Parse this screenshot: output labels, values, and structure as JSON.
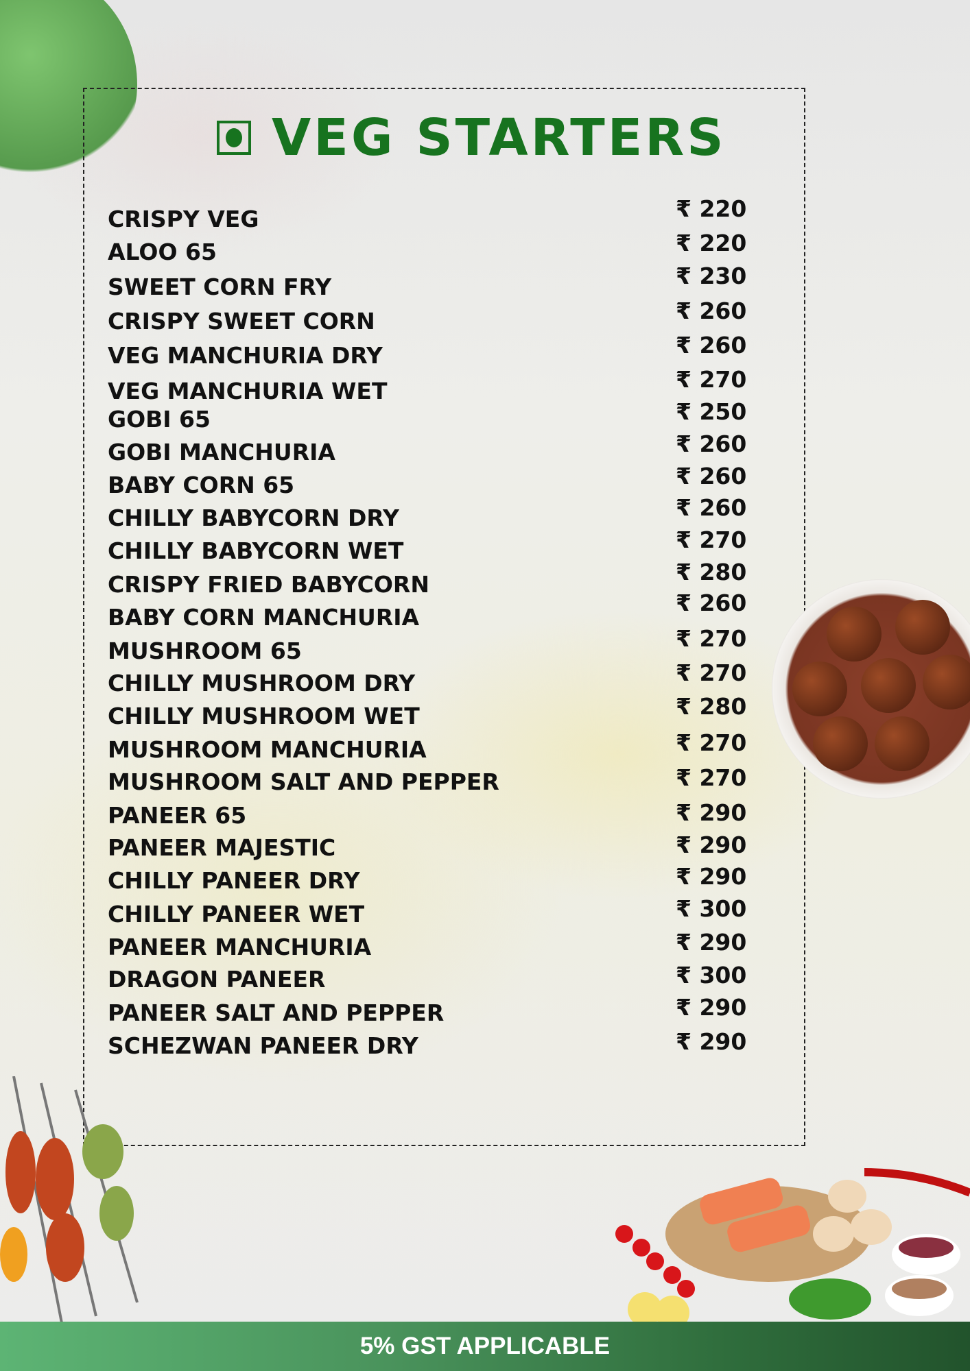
{
  "menu": {
    "title": "VEG STARTERS",
    "veg_icon": "veg-symbol-icon",
    "currency": "₹",
    "items": [
      {
        "name": "CRISPY VEG",
        "price": "₹ 220"
      },
      {
        "name": "ALOO 65",
        "price": "₹ 220"
      },
      {
        "name": "SWEET CORN FRY",
        "price": "₹ 230"
      },
      {
        "name": "CRISPY SWEET CORN",
        "price": "₹ 260"
      },
      {
        "name": "VEG MANCHURIA DRY",
        "price": "₹ 260"
      },
      {
        "name": "VEG MANCHURIA WET",
        "price": "₹ 270"
      },
      {
        "name": "GOBI 65",
        "price": "₹ 250"
      },
      {
        "name": "GOBI MANCHURIA",
        "price": "₹ 260"
      },
      {
        "name": "BABY CORN 65",
        "price": "₹ 260"
      },
      {
        "name": "CHILLY BABYCORN DRY",
        "price": "₹ 260"
      },
      {
        "name": "CHILLY BABYCORN WET",
        "price": "₹ 270"
      },
      {
        "name": "CRISPY FRIED BABYCORN",
        "price": "₹ 280"
      },
      {
        "name": "BABY CORN MANCHURIA",
        "price": "₹ 260"
      },
      {
        "name": "MUSHROOM 65",
        "price": "₹ 270"
      },
      {
        "name": "CHILLY MUSHROOM DRY",
        "price": "₹ 270"
      },
      {
        "name": "CHILLY MUSHROOM WET",
        "price": "₹ 280"
      },
      {
        "name": "MUSHROOM MANCHURIA",
        "price": "₹ 270"
      },
      {
        "name": "MUSHROOM SALT AND PEPPER",
        "price": "₹ 270"
      },
      {
        "name": "PANEER 65",
        "price": "₹ 290"
      },
      {
        "name": "PANEER MAJESTIC",
        "price": "₹ 290"
      },
      {
        "name": "CHILLY PANEER DRY",
        "price": "₹ 290"
      },
      {
        "name": "CHILLY PANEER WET",
        "price": "₹ 300"
      },
      {
        "name": "PANEER MANCHURIA",
        "price": "₹ 290"
      },
      {
        "name": "DRAGON PANEER",
        "price": "₹ 300"
      },
      {
        "name": "PANEER SALT AND PEPPER",
        "price": "₹ 290"
      },
      {
        "name": "SCHEZWAN PANEER DRY",
        "price": "₹ 290"
      }
    ]
  },
  "footer": {
    "note": "5% GST APPLICABLE"
  },
  "colors": {
    "title_green": "#17731f",
    "footer_start": "#5db474",
    "footer_end": "#22532c"
  }
}
